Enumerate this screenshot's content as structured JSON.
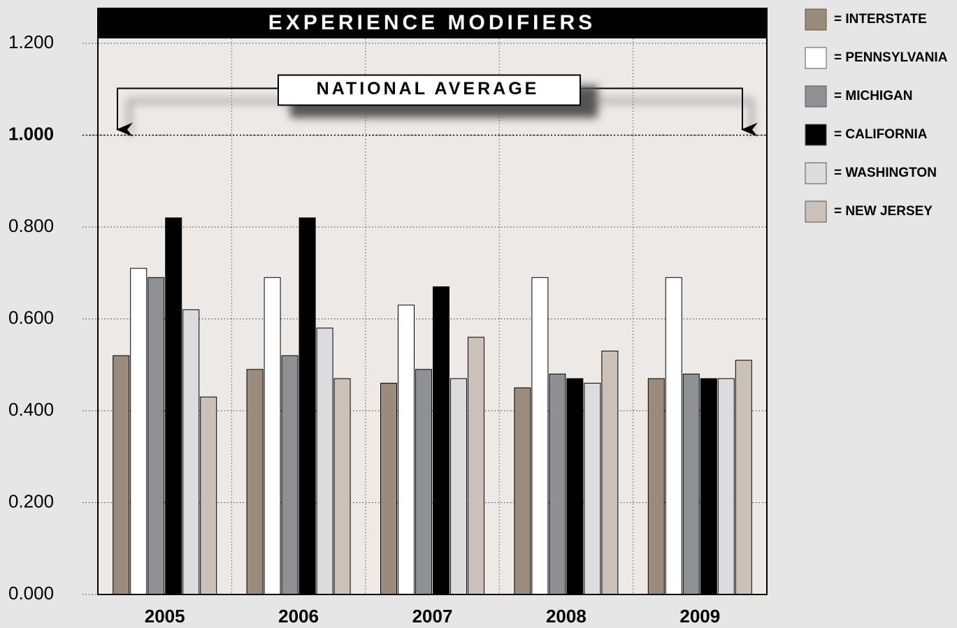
{
  "chart_data": {
    "type": "bar",
    "title": "EXPERIENCE MODIFIERS",
    "categories": [
      "2005",
      "2006",
      "2007",
      "2008",
      "2009"
    ],
    "series": [
      {
        "name": "= INTERSTATE",
        "color": "#9b8b7a",
        "values": [
          0.52,
          0.49,
          0.46,
          0.45,
          0.47
        ]
      },
      {
        "name": "= PENNSYLVANIA",
        "color": "#ffffff",
        "values": [
          0.71,
          0.69,
          0.63,
          0.69,
          0.69
        ]
      },
      {
        "name": "= MICHIGAN",
        "color": "#8f9094",
        "values": [
          0.69,
          0.52,
          0.49,
          0.48,
          0.48
        ]
      },
      {
        "name": "= CALIFORNIA",
        "color": "#000000",
        "values": [
          0.82,
          0.82,
          0.67,
          0.47,
          0.47
        ]
      },
      {
        "name": "= WASHINGTON",
        "color": "#dcdcde",
        "values": [
          0.62,
          0.58,
          0.47,
          0.46,
          0.47
        ]
      },
      {
        "name": "= NEW JERSEY",
        "color": "#cbc1b9",
        "values": [
          0.43,
          0.47,
          0.56,
          0.53,
          0.51
        ]
      }
    ],
    "ylim": [
      0,
      1.2
    ],
    "yticks": [
      {
        "value": 0,
        "label": "0.000"
      },
      {
        "value": 0.2,
        "label": "0.200"
      },
      {
        "value": 0.4,
        "label": "0.400"
      },
      {
        "value": 0.6,
        "label": "0.600"
      },
      {
        "value": 0.8,
        "label": "0.800"
      },
      {
        "value": 1,
        "label": "1.000"
      },
      {
        "value": 1.2,
        "label": "1.200"
      }
    ],
    "reference_line": {
      "value": 1,
      "label": "NATIONAL AVERAGE"
    },
    "grid": true,
    "legend": "right"
  }
}
